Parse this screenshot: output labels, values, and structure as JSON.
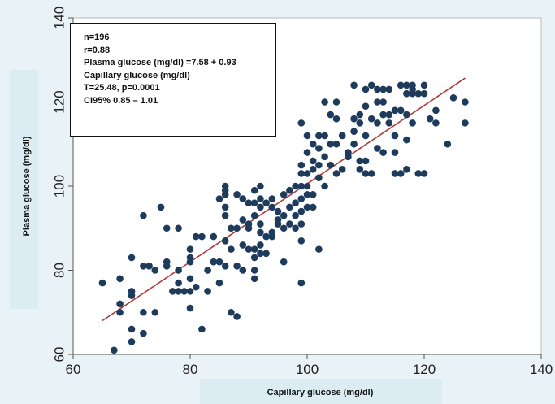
{
  "chart_data": {
    "type": "scatter",
    "title": "",
    "xlabel": "Capillary glucose (mg/dl)",
    "ylabel": "Plasma glucose (mg/dl)",
    "xlim": [
      60,
      140
    ],
    "ylim": [
      60,
      140
    ],
    "xticks": [
      60,
      80,
      100,
      120,
      140
    ],
    "yticks": [
      60,
      80,
      100,
      120,
      140
    ],
    "grid": false,
    "colors": {
      "points": "#1f3b5c",
      "fit_line": "#b03a3a",
      "plot_background": "#ffffff",
      "outer_background": "#e9f2f7",
      "label_band": "#dcecf3"
    },
    "fit_line": {
      "intercept": 7.58,
      "slope": 0.93,
      "x_range": [
        65,
        127
      ]
    },
    "annotation": [
      "n=196",
      "r=0.88",
      "Plasma glucose (mg/dl) =7.58 + 0.93",
      "Capillary glucose (mg/dl)",
      "T=25.48, p=0.0001",
      "CI95% 0.85 – 1.01"
    ],
    "series": [
      {
        "points": [
          [
            65,
            77
          ],
          [
            67,
            61
          ],
          [
            68,
            70
          ],
          [
            68,
            72
          ],
          [
            68,
            78
          ],
          [
            70,
            83
          ],
          [
            70,
            75
          ],
          [
            70,
            74
          ],
          [
            70,
            66
          ],
          [
            70,
            63
          ],
          [
            72,
            93
          ],
          [
            72,
            81
          ],
          [
            72,
            70
          ],
          [
            72,
            65
          ],
          [
            73,
            81
          ],
          [
            74,
            80
          ],
          [
            74,
            70
          ],
          [
            75,
            95
          ],
          [
            76,
            90
          ],
          [
            76,
            82
          ],
          [
            77,
            75
          ],
          [
            78,
            90
          ],
          [
            78,
            80
          ],
          [
            78,
            75
          ],
          [
            79,
            75
          ],
          [
            80,
            85
          ],
          [
            80,
            82
          ],
          [
            80,
            83
          ],
          [
            80,
            78
          ],
          [
            80,
            75
          ],
          [
            80,
            71
          ],
          [
            81,
            88
          ],
          [
            81,
            76
          ],
          [
            82,
            88
          ],
          [
            82,
            66
          ],
          [
            83,
            80
          ],
          [
            83,
            75
          ],
          [
            84,
            88
          ],
          [
            85,
            82
          ],
          [
            85,
            77
          ],
          [
            85,
            97
          ],
          [
            86,
            93
          ],
          [
            86,
            98
          ],
          [
            86,
            100
          ],
          [
            86,
            99
          ],
          [
            86,
            95
          ],
          [
            86,
            87
          ],
          [
            86,
            81
          ],
          [
            87,
            90
          ],
          [
            87,
            85
          ],
          [
            87,
            70
          ],
          [
            88,
            98
          ],
          [
            88,
            90
          ],
          [
            88,
            81
          ],
          [
            88,
            69
          ],
          [
            89,
            97
          ],
          [
            89,
            92
          ],
          [
            89,
            86
          ],
          [
            89,
            80
          ],
          [
            90,
            91
          ],
          [
            90,
            90
          ],
          [
            90,
            85
          ],
          [
            91,
            99
          ],
          [
            91,
            96
          ],
          [
            91,
            93
          ],
          [
            91,
            85
          ],
          [
            91,
            83
          ],
          [
            91,
            80
          ],
          [
            91,
            78
          ],
          [
            92,
            95
          ],
          [
            92,
            91
          ],
          [
            92,
            89
          ],
          [
            92,
            86
          ],
          [
            92,
            84
          ],
          [
            92,
            100
          ],
          [
            92,
            97
          ],
          [
            93,
            96
          ],
          [
            93,
            88
          ],
          [
            93,
            84
          ],
          [
            94,
            97
          ],
          [
            94,
            89
          ],
          [
            94,
            88
          ],
          [
            95,
            94
          ],
          [
            95,
            92
          ],
          [
            95,
            91
          ],
          [
            96,
            98
          ],
          [
            96,
            93
          ],
          [
            96,
            90
          ],
          [
            96,
            82
          ],
          [
            97,
            99
          ],
          [
            97,
            95
          ],
          [
            97,
            91
          ],
          [
            98,
            100
          ],
          [
            98,
            96
          ],
          [
            98,
            93
          ],
          [
            98,
            90
          ],
          [
            99,
            115
          ],
          [
            99,
            105
          ],
          [
            99,
            103
          ],
          [
            99,
            100
          ],
          [
            99,
            97
          ],
          [
            99,
            94
          ],
          [
            99,
            91
          ],
          [
            99,
            87
          ],
          [
            99,
            77
          ],
          [
            100,
            112
          ],
          [
            100,
            108
          ],
          [
            100,
            103
          ],
          [
            100,
            100
          ],
          [
            100,
            98
          ],
          [
            100,
            95
          ],
          [
            101,
            110
          ],
          [
            101,
            106
          ],
          [
            101,
            104
          ],
          [
            101,
            98
          ],
          [
            101,
            95
          ],
          [
            102,
            112
          ],
          [
            102,
            109
          ],
          [
            102,
            105
          ],
          [
            102,
            102
          ],
          [
            102,
            85
          ],
          [
            103,
            120
          ],
          [
            103,
            112
          ],
          [
            103,
            107
          ],
          [
            103,
            100
          ],
          [
            104,
            117
          ],
          [
            104,
            110
          ],
          [
            104,
            105
          ],
          [
            105,
            120
          ],
          [
            105,
            116
          ],
          [
            105,
            110
          ],
          [
            105,
            103
          ],
          [
            106,
            104
          ],
          [
            107,
            108
          ],
          [
            107,
            107
          ],
          [
            108,
            124
          ],
          [
            108,
            116
          ],
          [
            108,
            113
          ],
          [
            108,
            110
          ],
          [
            109,
            117
          ],
          [
            109,
            106
          ],
          [
            109,
            104
          ],
          [
            110,
            123
          ],
          [
            110,
            119
          ],
          [
            110,
            112
          ],
          [
            110,
            106
          ],
          [
            110,
            103
          ],
          [
            111,
            124
          ],
          [
            111,
            116
          ],
          [
            111,
            103
          ],
          [
            112,
            123
          ],
          [
            112,
            120
          ],
          [
            112,
            115
          ],
          [
            112,
            109
          ],
          [
            113,
            123
          ],
          [
            113,
            120
          ],
          [
            113,
            117
          ],
          [
            113,
            108
          ],
          [
            114,
            117
          ],
          [
            114,
            115
          ],
          [
            115,
            118
          ],
          [
            115,
            112
          ],
          [
            115,
            108
          ],
          [
            115,
            103
          ],
          [
            116,
            124
          ],
          [
            116,
            118
          ],
          [
            116,
            103
          ],
          [
            117,
            124
          ],
          [
            117,
            122
          ],
          [
            117,
            117
          ],
          [
            117,
            111
          ],
          [
            117,
            104
          ],
          [
            118,
            124
          ],
          [
            118,
            123
          ],
          [
            118,
            122
          ],
          [
            118,
            115
          ],
          [
            119,
            122
          ],
          [
            119,
            103
          ],
          [
            120,
            124
          ],
          [
            120,
            103
          ],
          [
            121,
            116
          ],
          [
            122,
            118
          ],
          [
            122,
            115
          ],
          [
            124,
            110
          ],
          [
            125,
            121
          ],
          [
            127,
            120
          ],
          [
            127,
            115
          ],
          [
            120,
            122
          ],
          [
            114,
            123
          ],
          [
            109,
            115
          ],
          [
            106,
            112
          ],
          [
            94,
            95
          ],
          [
            90,
            96
          ],
          [
            84,
            82
          ],
          [
            78,
            77
          ],
          [
            76,
            81
          ]
        ]
      }
    ]
  }
}
